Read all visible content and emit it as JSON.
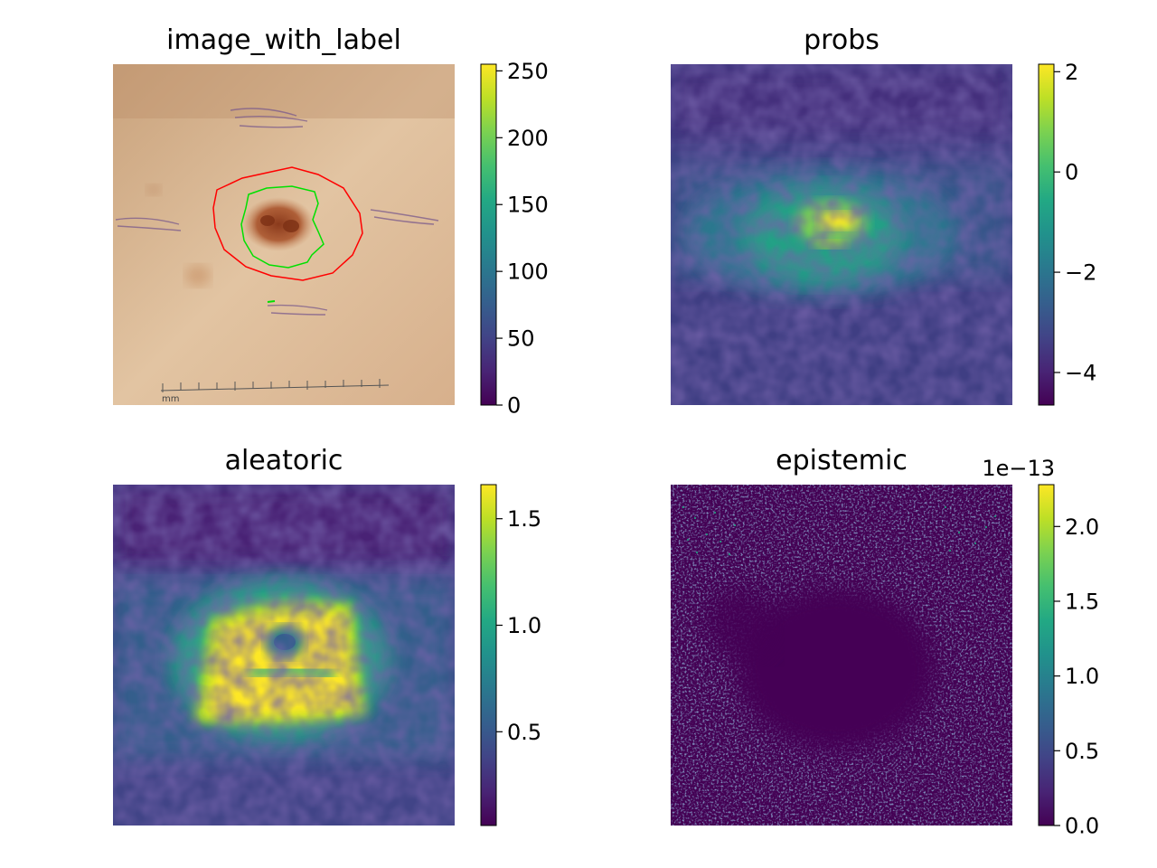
{
  "chart_data": [
    {
      "type": "heatmap",
      "title": "image_with_label",
      "colorbar": {
        "colormap": "viridis",
        "range": [
          0,
          255
        ],
        "ticks": [
          0,
          50,
          100,
          150,
          200,
          250
        ]
      },
      "overlays": [
        {
          "kind": "contour",
          "color": "#ff0000"
        },
        {
          "kind": "contour",
          "color": "#00e000"
        }
      ],
      "image_text": "mm"
    },
    {
      "type": "heatmap",
      "title": "probs",
      "colorbar": {
        "colormap": "viridis",
        "range": [
          -4.65,
          2.15
        ],
        "ticks": [
          -4,
          -2,
          0,
          2
        ],
        "tick_labels": [
          "−4",
          "−2",
          "0",
          "2"
        ]
      }
    },
    {
      "type": "heatmap",
      "title": "aleatoric",
      "colorbar": {
        "colormap": "viridis",
        "range": [
          0.06,
          1.66
        ],
        "ticks": [
          0.5,
          1.0,
          1.5
        ],
        "tick_labels": [
          "0.5",
          "1.0",
          "1.5"
        ]
      }
    },
    {
      "type": "heatmap",
      "title": "epistemic",
      "colorbar": {
        "colormap": "viridis",
        "range": [
          0,
          2.28
        ],
        "ticks": [
          0,
          0.5,
          1.0,
          1.5,
          2.0
        ],
        "tick_labels": [
          "0.0",
          "0.5",
          "1.0",
          "1.5",
          "2.0"
        ],
        "offset_text": "1e−13"
      }
    }
  ]
}
